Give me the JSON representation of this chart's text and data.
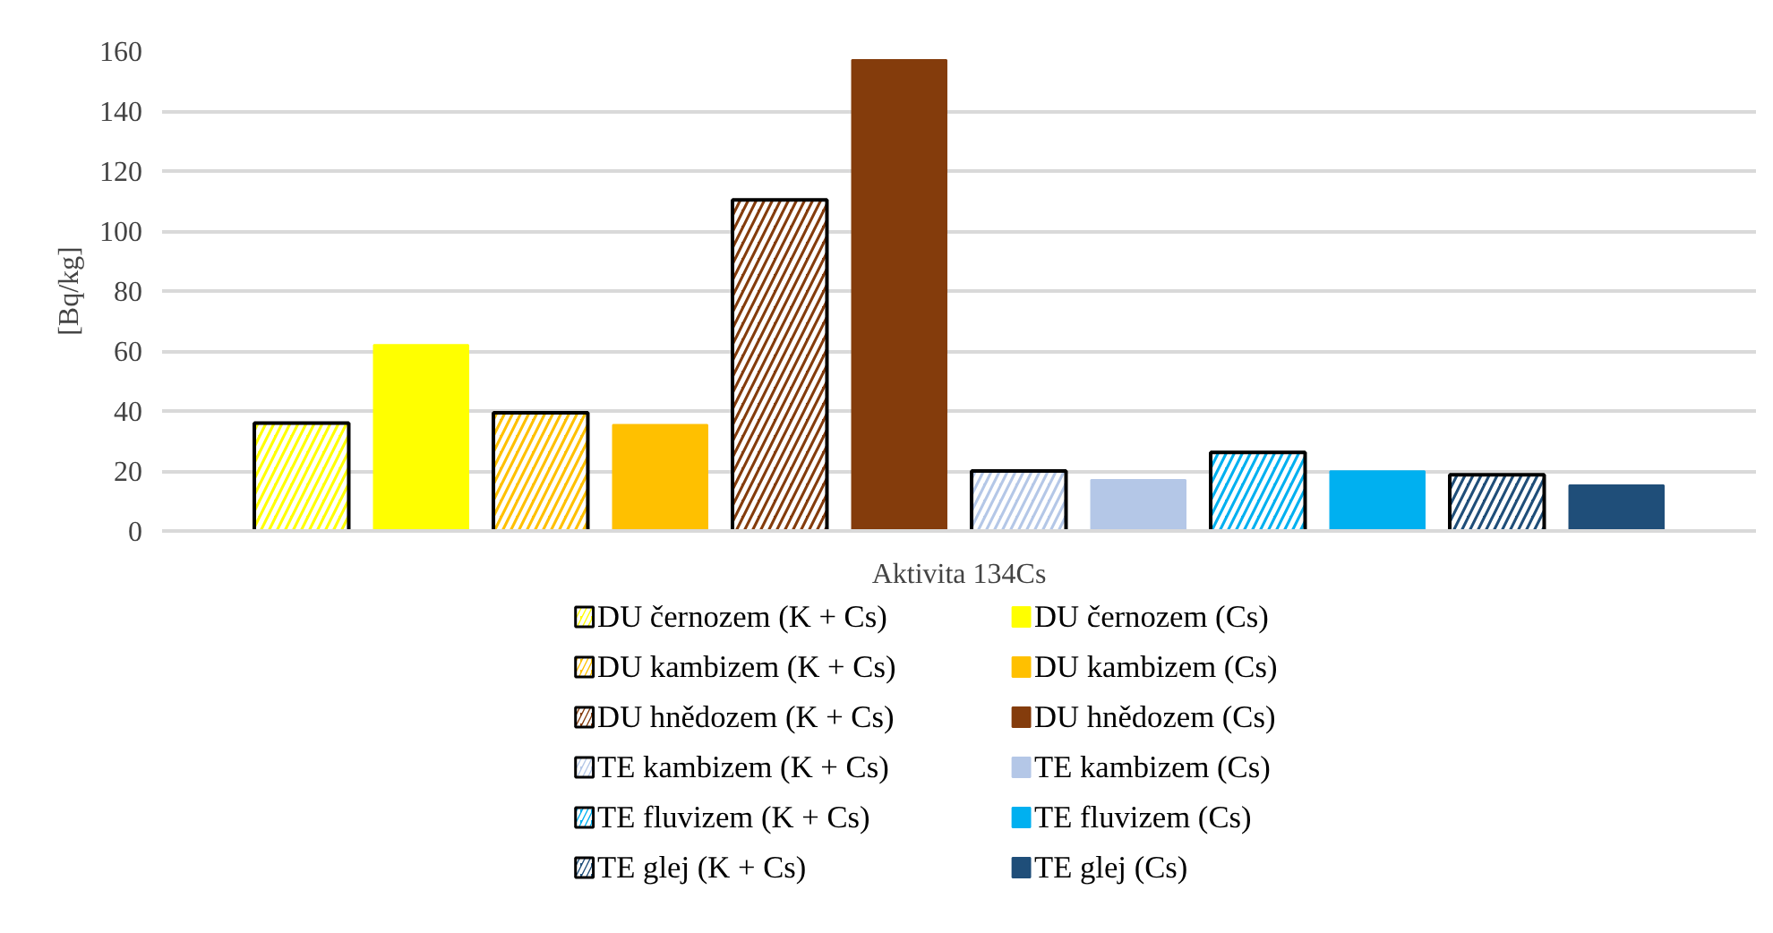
{
  "chart_data": {
    "type": "bar",
    "categories": [
      "Aktivita 134Cs"
    ],
    "ylabel": "[Bq/kg]",
    "ylim": [
      0,
      160
    ],
    "yticks": [
      0,
      20,
      40,
      60,
      80,
      100,
      120,
      140,
      160
    ],
    "grid": "y",
    "legend": "bottom",
    "series": [
      {
        "name": "DU černozem (K + Cs)",
        "color": "#ffff00",
        "values": [
          36
        ]
      },
      {
        "name": "DU černozem (Cs)",
        "color": "#ffff00",
        "values": [
          62
        ]
      },
      {
        "name": " DU kambizem (K + Cs)",
        "color": "#ffc000",
        "values": [
          39.4
        ]
      },
      {
        "name": " DU kambizem (Cs)",
        "color": "#ffc000",
        "values": [
          35.4
        ]
      },
      {
        "name": " DU hnědozem (K + Cs)",
        "color": "#843c0c",
        "values": [
          110.4
        ]
      },
      {
        "name": " DU hnědozem (Cs)",
        "color": "#843c0c",
        "values": [
          157
        ]
      },
      {
        "name": "TE kambizem (K + Cs)",
        "color": "#b4c7e7",
        "values": [
          20
        ]
      },
      {
        "name": "TE kambizem (Cs)",
        "color": "#b4c7e7",
        "values": [
          17
        ]
      },
      {
        "name": "TE fluvizem (K + Cs)",
        "color": "#00b0f0",
        "values": [
          26.2
        ]
      },
      {
        "name": "TE fluvizem (Cs)",
        "color": "#00b0f0",
        "values": [
          19.9
        ]
      },
      {
        "name": "TE glej (K + Cs)",
        "color": "#1f4e79",
        "values": [
          18.7
        ]
      },
      {
        "name": "TE glej (Cs)",
        "color": "#1f4e79",
        "values": [
          15.2
        ]
      }
    ]
  }
}
